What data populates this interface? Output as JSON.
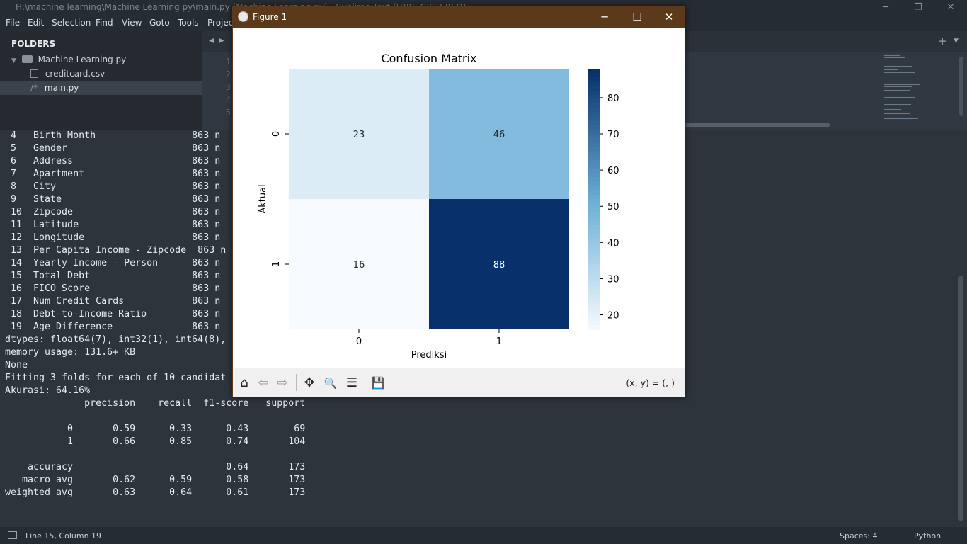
{
  "window": {
    "title": "H:\\machine learning\\Machine Learning py\\main.py (Machine Learning py) - Sublime Text (UNREGISTERED)",
    "min": "─",
    "max": "❐",
    "close": "✕"
  },
  "menu": [
    "File",
    "Edit",
    "Selection",
    "Find",
    "View",
    "Goto",
    "Tools",
    "Project"
  ],
  "sidebar": {
    "title": "FOLDERS",
    "folder": "Machine Learning py",
    "files": [
      "creditcard.csv",
      "main.py"
    ],
    "file_prefix": "/*"
  },
  "tabs": {
    "nav_left": "◀",
    "nav_right": "▶",
    "add": "+",
    "more": "▼"
  },
  "gutter": [
    "1",
    "2",
    "3",
    "4",
    "5"
  ],
  "output_lines": [
    " 4   Birth Month                 863 n",
    " 5   Gender                      863 n",
    " 6   Address                     863 n",
    " 7   Apartment                   863 n",
    " 8   City                        863 n",
    " 9   State                       863 n",
    " 10  Zipcode                     863 n",
    " 11  Latitude                    863 n",
    " 12  Longitude                   863 n",
    " 13  Per Capita Income - Zipcode  863 n",
    " 14  Yearly Income - Person      863 n",
    " 15  Total Debt                  863 n",
    " 16  FICO Score                  863 n",
    " 17  Num Credit Cards            863 n",
    " 18  Debt-to-Income Ratio        863 n",
    " 19  Age Difference              863 n",
    "dtypes: float64(7), int32(1), int64(8),",
    "memory usage: 131.6+ KB",
    "None",
    "Fitting 3 folds for each of 10 candidat",
    "Akurasi: 64.16%",
    "              precision    recall  f1-score   support",
    "",
    "           0       0.59      0.33      0.43        69",
    "           1       0.66      0.85      0.74       104",
    "",
    "    accuracy                           0.64       173",
    "   macro avg       0.62      0.59      0.58       173",
    "weighted avg       0.63      0.64      0.61       173"
  ],
  "status": {
    "position": "Line 15, Column 19",
    "spaces": "Spaces: 4",
    "syntax": "Python"
  },
  "figure": {
    "title": "Figure 1",
    "min": "─",
    "max": "☐",
    "close": "✕",
    "coords": "(x, y) = (, )",
    "toolbar": {
      "home": "⌂",
      "back": "⇦",
      "forward": "⇨",
      "pan": "✥",
      "zoom": "🔍",
      "configure": "☰",
      "save": "💾"
    }
  },
  "chart_data": {
    "type": "heatmap",
    "title": "Confusion Matrix",
    "xlabel": "Prediksi",
    "ylabel": "Aktual",
    "x_categories": [
      "0",
      "1"
    ],
    "y_categories": [
      "0",
      "1"
    ],
    "values": [
      [
        23,
        46
      ],
      [
        16,
        88
      ]
    ],
    "colormap": "Blues",
    "colorbar_range": [
      16,
      88
    ],
    "colorbar_ticks": [
      20,
      30,
      40,
      50,
      60,
      70,
      80
    ],
    "colors": {
      "low": "#f7fbff",
      "high": "#08306b"
    }
  }
}
